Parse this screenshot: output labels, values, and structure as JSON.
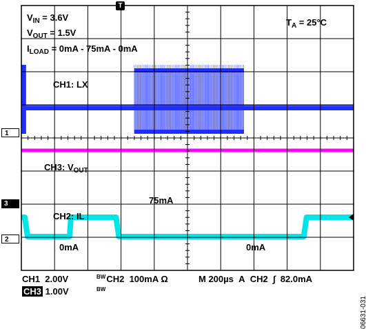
{
  "annotations": {
    "vin": {
      "pre": "V",
      "sub": "IN",
      "post": " = 3.6V"
    },
    "vout": {
      "pre": "V",
      "sub": "OUT",
      "post": " = 1.5V"
    },
    "iload": {
      "pre": "I",
      "sub": "LOAD",
      "post": " = 0mA - 75mA - 0mA"
    },
    "ta": {
      "pre": "T",
      "sub": "A",
      "post": " = 25°C"
    },
    "ch1": "CH1: LX",
    "ch3": {
      "pre": "CH3: V",
      "sub": "OUT",
      "post": ""
    },
    "ch2": "CH2: IL",
    "level_high": "75mA",
    "level_low_left": "0mA",
    "level_low_right": "0mA"
  },
  "footer": {
    "ch1_label": "CH1",
    "ch1_scale": "2.00V",
    "bw1": "BW",
    "ch2_label": "CH2",
    "ch2_scale": "100mA Ω",
    "timebase": "M 200µs",
    "trigger_label": "A",
    "trigger_source": "CH2",
    "trigger_slope": "∫",
    "trigger_level": "82.0mA",
    "ch3_label": "CH3",
    "ch3_scale": "1.00V",
    "bw3": "BW"
  },
  "channel_markers": [
    "1",
    "3",
    "2"
  ],
  "trigger_marker": "T",
  "figure_id": "06631-031",
  "colors": {
    "ch1": "#1f2fff",
    "ch2": "#00e5e5",
    "ch3": "#ff00ff",
    "grid": "#000000"
  },
  "chart_data": {
    "type": "line",
    "grid": true,
    "x_divisions": 10,
    "y_divisions": 8,
    "timebase_per_div_us": 200,
    "series": [
      {
        "name": "CH1: LX",
        "kind": "switching",
        "bursts_div": [
          [
            0.0,
            0.1
          ],
          [
            3.4,
            6.7
          ],
          [
            10.0,
            10.0
          ]
        ],
        "dense_div": [
          [
            1.45,
            2.85
          ],
          [
            8.5,
            9.5
          ]
        ],
        "level_div": 6.1
      },
      {
        "name": "CH3: VOUT",
        "kind": "flat",
        "level_div": 4.5
      },
      {
        "name": "CH2: IL",
        "kind": "step",
        "steps_div": [
          [
            0.0,
            2.2
          ],
          [
            0.2,
            1.5
          ],
          [
            1.45,
            2.2
          ],
          [
            2.85,
            1.5
          ],
          [
            4.3,
            1.5
          ],
          [
            6.85,
            2.2
          ],
          [
            8.5,
            2.2
          ]
        ],
        "low_mA": 0,
        "high_mA": 75
      }
    ]
  }
}
